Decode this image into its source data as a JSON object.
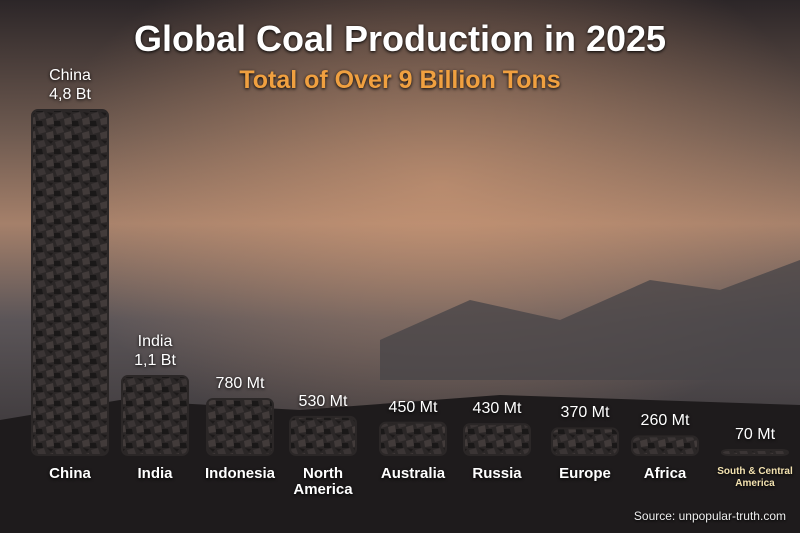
{
  "chart_data": {
    "type": "bar",
    "title": "Global Coal Production in 2025",
    "subtitle": "Total of Over 9 Billion Tons",
    "categories": [
      "China",
      "India",
      "Indonesia",
      "North America",
      "Australia",
      "Russia",
      "Europe",
      "Africa",
      "South & Central America"
    ],
    "values": [
      4800,
      1100,
      780,
      530,
      450,
      430,
      370,
      260,
      70
    ],
    "value_labels": [
      "4,8 Bt",
      "1,1 Bt",
      "780 Mt",
      "530 Mt",
      "450 Mt",
      "430 Mt",
      "370 Mt",
      "260 Mt",
      "70 Mt"
    ],
    "color": "#2b2727",
    "source": "Source: unpopular-truth.com"
  }
}
